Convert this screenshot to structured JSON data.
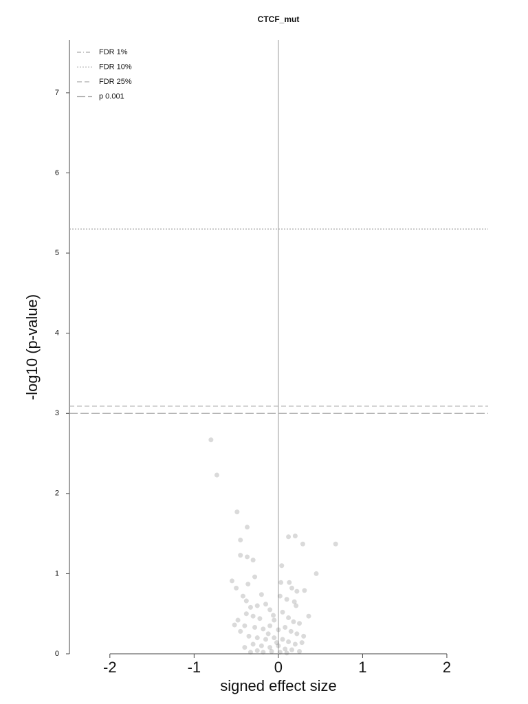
{
  "chart_data": {
    "type": "scatter",
    "title": "CTCF_mut",
    "x_label": "signed effect size",
    "y_label": "-log10 (p-value)",
    "xlim": [
      -2.48,
      2.49
    ],
    "ylim": [
      0,
      7.66
    ],
    "xticks": [
      -2,
      -1,
      0,
      1,
      2
    ],
    "yticks": [
      0,
      1,
      2,
      3,
      4,
      5,
      6,
      7
    ],
    "color": "#555555",
    "x": [
      -0.8,
      -0.73,
      -0.49,
      -0.37,
      -0.45,
      0.12,
      0.2,
      0.29,
      0.68,
      -0.45,
      -0.37,
      -0.3,
      0.04,
      0.45,
      -0.55,
      -0.5,
      -0.36,
      -0.28,
      -0.42,
      -0.38,
      -0.2,
      0.03,
      0.13,
      0.16,
      0.22,
      0.31,
      0.02,
      0.1,
      0.19,
      0.21,
      -0.15,
      -0.25,
      -0.33,
      -0.1,
      0.05,
      0.36,
      -0.38,
      -0.3,
      -0.22,
      -0.48,
      -0.52,
      0.12,
      0.25,
      -0.05,
      -0.4,
      -0.28,
      -0.18,
      -0.1,
      0.0,
      0.08,
      0.15,
      0.22,
      0.3,
      -0.35,
      -0.25,
      -0.15,
      -0.05,
      0.05,
      0.12,
      0.2,
      -0.3,
      -0.2,
      -0.1,
      0.0,
      0.08,
      -0.4,
      0.28,
      -0.12,
      -0.02,
      0.16,
      -0.25,
      -0.08,
      0.02,
      -0.18,
      0.1,
      0.25,
      -0.33,
      -0.45,
      0.18,
      -0.06
    ],
    "values": [
      2.67,
      2.23,
      1.77,
      1.58,
      1.42,
      1.46,
      1.47,
      1.37,
      1.37,
      1.23,
      1.21,
      1.17,
      1.1,
      1.0,
      0.91,
      0.82,
      0.87,
      0.96,
      0.72,
      0.66,
      0.74,
      0.89,
      0.89,
      0.82,
      0.78,
      0.79,
      0.72,
      0.68,
      0.65,
      0.6,
      0.62,
      0.6,
      0.58,
      0.55,
      0.52,
      0.47,
      0.5,
      0.47,
      0.44,
      0.42,
      0.36,
      0.45,
      0.38,
      0.42,
      0.35,
      0.33,
      0.31,
      0.35,
      0.3,
      0.33,
      0.28,
      0.25,
      0.22,
      0.22,
      0.2,
      0.18,
      0.2,
      0.18,
      0.15,
      0.12,
      0.12,
      0.1,
      0.08,
      0.1,
      0.06,
      0.08,
      0.14,
      0.25,
      0.14,
      0.05,
      0.04,
      0.03,
      0.02,
      0.02,
      0.01,
      0.03,
      0.02,
      0.28,
      0.4,
      0.48
    ],
    "lines": [
      {
        "name": "FDR 1%",
        "value": null,
        "style": "dashdot"
      },
      {
        "name": "FDR 10%",
        "value": 5.3,
        "style": "dotted"
      },
      {
        "name": "FDR 25%",
        "value": 3.09,
        "style": "dashed"
      },
      {
        "name": "p 0.001",
        "value": 3.0,
        "style": "longdash"
      }
    ]
  }
}
